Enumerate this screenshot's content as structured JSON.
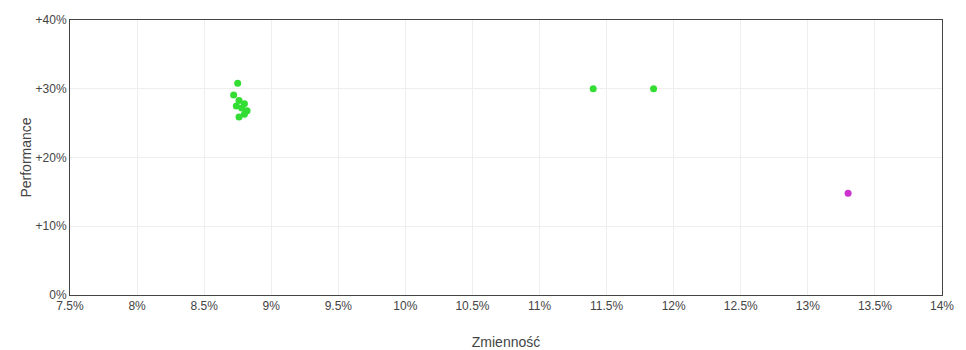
{
  "chart_data": {
    "type": "scatter",
    "xlabel": "Zmienność",
    "ylabel": "Performance",
    "xlim": [
      0.075,
      0.14
    ],
    "ylim": [
      0.0,
      0.4
    ],
    "xticks": [
      {
        "value": 0.075,
        "label": "7.5%"
      },
      {
        "value": 0.08,
        "label": "8%"
      },
      {
        "value": 0.085,
        "label": "8.5%"
      },
      {
        "value": 0.09,
        "label": "9%"
      },
      {
        "value": 0.095,
        "label": "9.5%"
      },
      {
        "value": 0.1,
        "label": "10%"
      },
      {
        "value": 0.105,
        "label": "10.5%"
      },
      {
        "value": 0.11,
        "label": "11%"
      },
      {
        "value": 0.115,
        "label": "11.5%"
      },
      {
        "value": 0.12,
        "label": "12%"
      },
      {
        "value": 0.125,
        "label": "12.5%"
      },
      {
        "value": 0.13,
        "label": "13%"
      },
      {
        "value": 0.135,
        "label": "13.5%"
      },
      {
        "value": 0.14,
        "label": "14%"
      }
    ],
    "yticks": [
      {
        "value": 0.0,
        "label": "0%"
      },
      {
        "value": 0.1,
        "label": "+10%"
      },
      {
        "value": 0.2,
        "label": "+20%"
      },
      {
        "value": 0.3,
        "label": "+30%"
      },
      {
        "value": 0.4,
        "label": "+40%"
      }
    ],
    "grid": true,
    "series": [
      {
        "color": "#33dd33",
        "x": [
          0.0875,
          0.0872,
          0.0876,
          0.088,
          0.0874,
          0.0878,
          0.0882,
          0.088,
          0.0876,
          0.114,
          0.1185
        ],
        "values": [
          0.308,
          0.291,
          0.283,
          0.278,
          0.275,
          0.272,
          0.268,
          0.263,
          0.259,
          0.3,
          0.3
        ]
      },
      {
        "color": "#cc33cc",
        "x": [
          0.133
        ],
        "values": [
          0.148
        ]
      }
    ]
  }
}
